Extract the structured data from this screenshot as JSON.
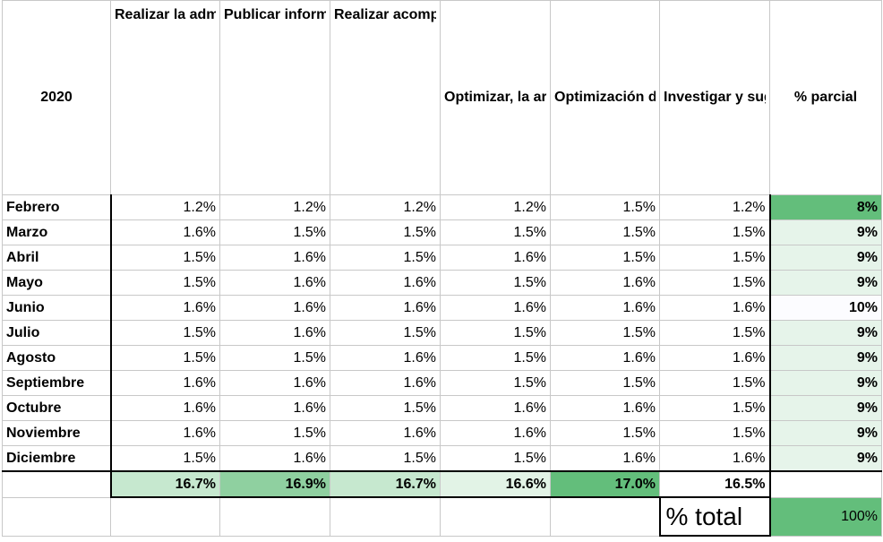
{
  "header": {
    "year": "2020",
    "columns": [
      "Realizar la administración del sitio web del municipio de Tuluá, www.tulua.gov.co.",
      "Publicar información en la página web, conservando la imagen corporativa de la",
      "Realizar acompañamiento técnico a los encargados de publicación de notas e",
      "Optimizar, la arquitectura de las páginas, portales y sitios.",
      "Optimización del sitio web para los motores de búsqueda.",
      "Investigar y sugerir planes para la implementación de nuevas técnicas web."
    ],
    "partial_label": "% parcial"
  },
  "rows": [
    {
      "month": "Febrero",
      "values": [
        "1.2%",
        "1.2%",
        "1.2%",
        "1.2%",
        "1.5%",
        "1.2%"
      ],
      "partial": "8%"
    },
    {
      "month": "Marzo",
      "values": [
        "1.6%",
        "1.5%",
        "1.5%",
        "1.5%",
        "1.5%",
        "1.5%"
      ],
      "partial": "9%"
    },
    {
      "month": "Abril",
      "values": [
        "1.5%",
        "1.6%",
        "1.5%",
        "1.6%",
        "1.5%",
        "1.5%"
      ],
      "partial": "9%"
    },
    {
      "month": "Mayo",
      "values": [
        "1.5%",
        "1.6%",
        "1.6%",
        "1.5%",
        "1.6%",
        "1.5%"
      ],
      "partial": "9%"
    },
    {
      "month": "Junio",
      "values": [
        "1.6%",
        "1.6%",
        "1.6%",
        "1.6%",
        "1.6%",
        "1.6%"
      ],
      "partial": "10%"
    },
    {
      "month": "Julio",
      "values": [
        "1.5%",
        "1.6%",
        "1.5%",
        "1.5%",
        "1.5%",
        "1.5%"
      ],
      "partial": "9%"
    },
    {
      "month": "Agosto",
      "values": [
        "1.5%",
        "1.5%",
        "1.6%",
        "1.5%",
        "1.6%",
        "1.6%"
      ],
      "partial": "9%"
    },
    {
      "month": "Septiembre",
      "values": [
        "1.6%",
        "1.6%",
        "1.6%",
        "1.5%",
        "1.5%",
        "1.5%"
      ],
      "partial": "9%"
    },
    {
      "month": "Octubre",
      "values": [
        "1.6%",
        "1.6%",
        "1.5%",
        "1.6%",
        "1.6%",
        "1.5%"
      ],
      "partial": "9%"
    },
    {
      "month": "Noviembre",
      "values": [
        "1.6%",
        "1.5%",
        "1.6%",
        "1.6%",
        "1.5%",
        "1.5%"
      ],
      "partial": "9%"
    },
    {
      "month": "Diciembre",
      "values": [
        "1.5%",
        "1.6%",
        "1.5%",
        "1.5%",
        "1.6%",
        "1.6%"
      ],
      "partial": "9%"
    }
  ],
  "totals": [
    "16.7%",
    "16.9%",
    "16.7%",
    "16.6%",
    "17.0%",
    "16.5%"
  ],
  "grand_total": {
    "label": "% total",
    "value": "100%"
  },
  "colors": {
    "partial_strong": "#63be7b",
    "partial_light": "#e6f4ea",
    "partial_lighter": "#f0f9f2",
    "partial_white": "#fcfcff",
    "total_light": "#c6e8cf",
    "total_mid": "#8fd0a0",
    "total_strong": "#63be7b",
    "total_faint": "#e2f3e6",
    "total_none": "#ffffff"
  }
}
